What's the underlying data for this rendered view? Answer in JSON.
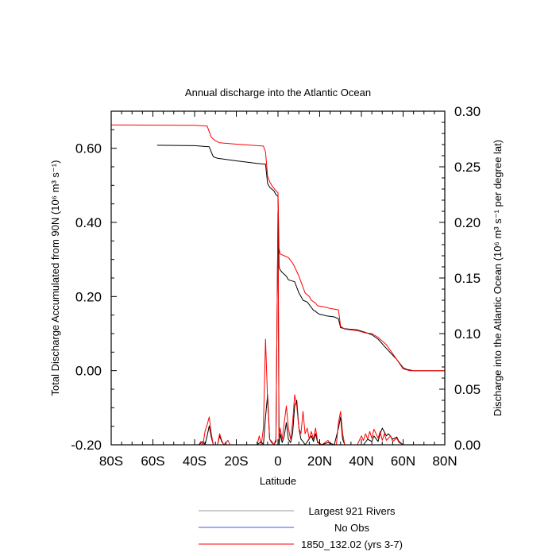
{
  "chart_data": {
    "type": "line",
    "title": "Annual discharge into the Atlantic Ocean",
    "xlabel": "Latitude",
    "ylabel_left": "Total Discharge Accumulated from 90N (10⁶ m³ s⁻¹)",
    "ylabel_right": "Discharge into the Atlantic Ocean (10⁶ m³ s⁻¹ per degree lat)",
    "xlim": [
      -80,
      80
    ],
    "ylim_left": [
      -0.2,
      0.7
    ],
    "ylim_right": [
      0.0,
      0.3
    ],
    "x_ticks": [
      {
        "v": -80,
        "label": "80S"
      },
      {
        "v": -60,
        "label": "60S"
      },
      {
        "v": -40,
        "label": "40S"
      },
      {
        "v": -20,
        "label": "20S"
      },
      {
        "v": 0,
        "label": "0"
      },
      {
        "v": 20,
        "label": "20N"
      },
      {
        "v": 40,
        "label": "40N"
      },
      {
        "v": 60,
        "label": "60N"
      },
      {
        "v": 80,
        "label": "80N"
      }
    ],
    "y_left_ticks": [
      {
        "v": -0.2,
        "label": "-0.20"
      },
      {
        "v": 0.0,
        "label": "0.00"
      },
      {
        "v": 0.2,
        "label": "0.20"
      },
      {
        "v": 0.4,
        "label": "0.40"
      },
      {
        "v": 0.6,
        "label": "0.60"
      }
    ],
    "y_right_ticks": [
      {
        "v": 0.0,
        "label": "0.00"
      },
      {
        "v": 0.05,
        "label": "0.05"
      },
      {
        "v": 0.1,
        "label": "0.10"
      },
      {
        "v": 0.15,
        "label": "0.15"
      },
      {
        "v": 0.2,
        "label": "0.20"
      },
      {
        "v": 0.25,
        "label": "0.25"
      },
      {
        "v": 0.3,
        "label": "0.30"
      }
    ],
    "series": [
      {
        "name": "Largest 921 Rivers",
        "color": "#000000",
        "axis": "left",
        "points": [
          [
            -58,
            0.608
          ],
          [
            -40,
            0.607
          ],
          [
            -33,
            0.604
          ],
          [
            -32,
            0.59
          ],
          [
            -31,
            0.577
          ],
          [
            -29,
            0.573
          ],
          [
            -20,
            0.566
          ],
          [
            -10,
            0.559
          ],
          [
            -6,
            0.557
          ],
          [
            -5,
            0.505
          ],
          [
            -4,
            0.495
          ],
          [
            -2,
            0.485
          ],
          [
            -1,
            0.475
          ],
          [
            0,
            0.47
          ],
          [
            0.5,
            0.28
          ],
          [
            1,
            0.272
          ],
          [
            2,
            0.265
          ],
          [
            4,
            0.255
          ],
          [
            5,
            0.245
          ],
          [
            8,
            0.24
          ],
          [
            9,
            0.225
          ],
          [
            10,
            0.21
          ],
          [
            11,
            0.2
          ],
          [
            12,
            0.19
          ],
          [
            14,
            0.185
          ],
          [
            15,
            0.178
          ],
          [
            17,
            0.163
          ],
          [
            18,
            0.16
          ],
          [
            19,
            0.155
          ],
          [
            20,
            0.152
          ],
          [
            22,
            0.15
          ],
          [
            23,
            0.148
          ],
          [
            27,
            0.145
          ],
          [
            29,
            0.14
          ],
          [
            30,
            0.116
          ],
          [
            32,
            0.113
          ],
          [
            38,
            0.11
          ],
          [
            42,
            0.103
          ],
          [
            45,
            0.097
          ],
          [
            48,
            0.085
          ],
          [
            52,
            0.06
          ],
          [
            57,
            0.03
          ],
          [
            60,
            0.008
          ],
          [
            62,
            0.003
          ],
          [
            65,
            0.0
          ],
          [
            80,
            0.0
          ]
        ]
      },
      {
        "name": "No Obs",
        "color": "#3b56ff",
        "axis": "left",
        "points": []
      },
      {
        "name": "1850_132.02 (yrs 3-7)",
        "color": "#ff0000",
        "axis": "left",
        "points": [
          [
            -80,
            0.663
          ],
          [
            -40,
            0.662
          ],
          [
            -34,
            0.66
          ],
          [
            -33,
            0.645
          ],
          [
            -32,
            0.63
          ],
          [
            -31,
            0.625
          ],
          [
            -30,
            0.62
          ],
          [
            -28,
            0.615
          ],
          [
            -20,
            0.611
          ],
          [
            -10,
            0.607
          ],
          [
            -7,
            0.606
          ],
          [
            -6,
            0.59
          ],
          [
            -5,
            0.525
          ],
          [
            -4,
            0.51
          ],
          [
            -3,
            0.5
          ],
          [
            -1,
            0.485
          ],
          [
            0,
            0.48
          ],
          [
            0.5,
            0.33
          ],
          [
            1,
            0.315
          ],
          [
            3,
            0.31
          ],
          [
            5,
            0.305
          ],
          [
            7,
            0.29
          ],
          [
            8,
            0.28
          ],
          [
            10,
            0.255
          ],
          [
            11,
            0.24
          ],
          [
            12,
            0.225
          ],
          [
            13,
            0.21
          ],
          [
            15,
            0.2
          ],
          [
            16,
            0.19
          ],
          [
            18,
            0.182
          ],
          [
            19,
            0.175
          ],
          [
            22,
            0.172
          ],
          [
            25,
            0.168
          ],
          [
            29,
            0.164
          ],
          [
            30,
            0.12
          ],
          [
            32,
            0.112
          ],
          [
            38,
            0.108
          ],
          [
            42,
            0.102
          ],
          [
            45,
            0.1
          ],
          [
            48,
            0.09
          ],
          [
            52,
            0.07
          ],
          [
            57,
            0.03
          ],
          [
            60,
            0.005
          ],
          [
            63,
            0.0
          ],
          [
            80,
            0.0
          ]
        ]
      }
    ],
    "discharge_series": [
      {
        "name": "Largest 921 Rivers",
        "color": "#000000",
        "axis": "right",
        "points": [
          [
            -58,
            0.0
          ],
          [
            -38,
            0.0
          ],
          [
            -36,
            0.003
          ],
          [
            -35,
            0.0
          ],
          [
            -34,
            0.008
          ],
          [
            -33,
            0.017
          ],
          [
            -32,
            0.007
          ],
          [
            -31,
            0.0
          ],
          [
            -29,
            0.0
          ],
          [
            -28,
            0.008
          ],
          [
            -27,
            0.003
          ],
          [
            -26,
            0.0
          ],
          [
            -10,
            0.0
          ],
          [
            -8,
            0.003
          ],
          [
            -7,
            0.0
          ],
          [
            -6,
            0.025
          ],
          [
            -5,
            0.045
          ],
          [
            -4,
            0.005
          ],
          [
            -3,
            0.002
          ],
          [
            -2,
            0.0
          ],
          [
            -1,
            0.003
          ],
          [
            0,
            0.21
          ],
          [
            0.5,
            0.0
          ],
          [
            1,
            0.01
          ],
          [
            2,
            0.002
          ],
          [
            3,
            0.008
          ],
          [
            4,
            0.02
          ],
          [
            5,
            0.005
          ],
          [
            6,
            0.002
          ],
          [
            7,
            0.01
          ],
          [
            8,
            0.035
          ],
          [
            9,
            0.04
          ],
          [
            10,
            0.015
          ],
          [
            11,
            0.005
          ],
          [
            12,
            0.003
          ],
          [
            13,
            0.0
          ],
          [
            16,
            0.008
          ],
          [
            17,
            0.003
          ],
          [
            18,
            0.01
          ],
          [
            19,
            0.002
          ],
          [
            21,
            0.0
          ],
          [
            24,
            0.002
          ],
          [
            27,
            0.0
          ],
          [
            29,
            0.015
          ],
          [
            30,
            0.025
          ],
          [
            31,
            0.005
          ],
          [
            32,
            0.0
          ],
          [
            41,
            0.0
          ],
          [
            43,
            0.005
          ],
          [
            45,
            0.003
          ],
          [
            46,
            0.008
          ],
          [
            48,
            0.003
          ],
          [
            49,
            0.01
          ],
          [
            50,
            0.015
          ],
          [
            52,
            0.008
          ],
          [
            53,
            0.01
          ],
          [
            55,
            0.005
          ],
          [
            57,
            0.007
          ],
          [
            58,
            0.003
          ],
          [
            60,
            0.0
          ],
          [
            62,
            0.0
          ]
        ]
      },
      {
        "name": "1850_132.02 (yrs 3-7)",
        "color": "#ff0000",
        "axis": "right",
        "points": [
          [
            -80,
            0.0
          ],
          [
            -38,
            0.0
          ],
          [
            -37,
            0.003
          ],
          [
            -36,
            0.0
          ],
          [
            -35,
            0.012
          ],
          [
            -34,
            0.018
          ],
          [
            -33,
            0.025
          ],
          [
            -32,
            0.01
          ],
          [
            -31,
            0.0
          ],
          [
            -29,
            0.0
          ],
          [
            -28,
            0.01
          ],
          [
            -27,
            0.004
          ],
          [
            -26,
            0.0
          ],
          [
            -24,
            0.004
          ],
          [
            -23,
            0.0
          ],
          [
            -10,
            0.0
          ],
          [
            -9,
            0.008
          ],
          [
            -8,
            0.0
          ],
          [
            -7,
            0.015
          ],
          [
            -6,
            0.095
          ],
          [
            -5,
            0.04
          ],
          [
            -4,
            0.005
          ],
          [
            -3,
            0.003
          ],
          [
            -2,
            0.0
          ],
          [
            -1,
            0.005
          ],
          [
            0,
            0.21
          ],
          [
            0.5,
            0.005
          ],
          [
            1,
            0.015
          ],
          [
            2,
            0.005
          ],
          [
            3,
            0.02
          ],
          [
            4,
            0.035
          ],
          [
            5,
            0.015
          ],
          [
            6,
            0.005
          ],
          [
            7,
            0.02
          ],
          [
            8,
            0.045
          ],
          [
            9,
            0.035
          ],
          [
            10,
            0.015
          ],
          [
            11,
            0.01
          ],
          [
            12,
            0.03
          ],
          [
            13,
            0.01
          ],
          [
            14,
            0.015
          ],
          [
            15,
            0.005
          ],
          [
            16,
            0.012
          ],
          [
            17,
            0.005
          ],
          [
            18,
            0.015
          ],
          [
            19,
            0.003
          ],
          [
            21,
            0.0
          ],
          [
            24,
            0.004
          ],
          [
            25,
            0.0
          ],
          [
            28,
            0.0
          ],
          [
            29,
            0.02
          ],
          [
            30,
            0.03
          ],
          [
            31,
            0.01
          ],
          [
            32,
            0.0
          ],
          [
            38,
            0.0
          ],
          [
            40,
            0.008
          ],
          [
            41,
            0.004
          ],
          [
            42,
            0.01
          ],
          [
            43,
            0.005
          ],
          [
            44,
            0.012
          ],
          [
            45,
            0.006
          ],
          [
            46,
            0.014
          ],
          [
            48,
            0.006
          ],
          [
            49,
            0.012
          ],
          [
            50,
            0.004
          ],
          [
            51,
            0.01
          ],
          [
            52,
            0.004
          ],
          [
            54,
            0.008
          ],
          [
            55,
            0.003
          ],
          [
            57,
            0.006
          ],
          [
            58,
            0.002
          ],
          [
            60,
            0.0
          ],
          [
            80,
            0.0
          ]
        ]
      }
    ],
    "legend": [
      {
        "name": "Largest 921 Rivers",
        "color": "#999999"
      },
      {
        "name": "No Obs",
        "color": "#3b56ff"
      },
      {
        "name": "1850_132.02 (yrs 3-7)",
        "color": "#ff0000"
      }
    ],
    "legend_placement": "bottom",
    "grid": false
  }
}
